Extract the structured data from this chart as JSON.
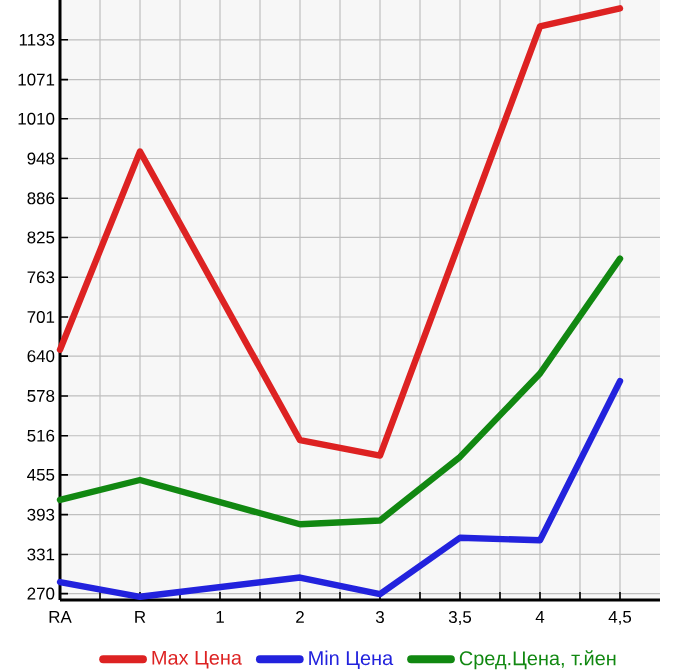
{
  "chart_data": {
    "type": "line",
    "categories": [
      "RA",
      "R",
      "1",
      "2",
      "3",
      "3,5",
      "4",
      "4,5"
    ],
    "series": [
      {
        "name": "Max Цена",
        "color": "#dd2222",
        "values": [
          650,
          959,
          null,
          509,
          485,
          null,
          1154,
          1182
        ]
      },
      {
        "name": "Min Цена",
        "color": "#2222dd",
        "values": [
          288,
          265,
          null,
          295,
          269,
          357,
          353,
          601
        ]
      },
      {
        "name": "Сред.Цена, т.йен",
        "color": "#118811",
        "values": [
          416,
          447,
          null,
          378,
          384,
          483,
          613,
          792
        ]
      }
    ],
    "ylim": [
      260,
      1195
    ],
    "yticks": [
      270,
      331,
      393,
      455,
      516,
      578,
      640,
      701,
      763,
      825,
      886,
      948,
      1010,
      1071,
      1133
    ],
    "grid": true,
    "legend": "bottom"
  }
}
